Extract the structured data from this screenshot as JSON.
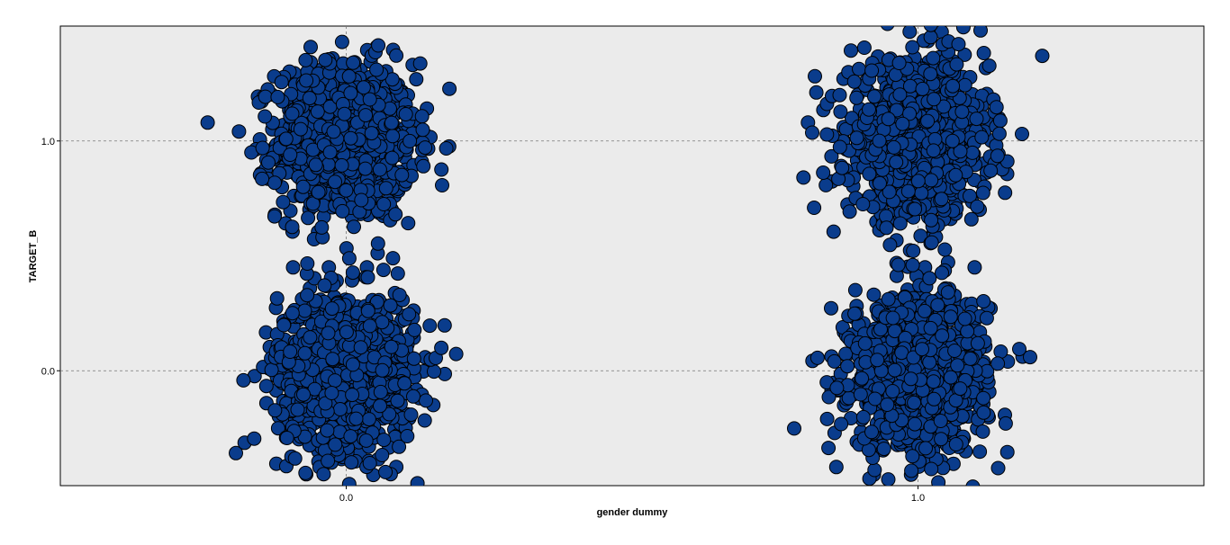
{
  "chart_data": {
    "type": "scatter",
    "xlabel": "gender dummy",
    "ylabel": "TARGET_B",
    "x_ticks": [
      "0.0",
      "1.0"
    ],
    "y_ticks": [
      "0.0",
      "1.0"
    ],
    "xlim": [
      -0.5,
      1.5
    ],
    "ylim": [
      -0.5,
      1.5
    ],
    "grid": true,
    "jitter": true,
    "clusters": [
      {
        "x": 0,
        "y": 1,
        "count": 1100
      },
      {
        "x": 0,
        "y": 0,
        "count": 1100
      },
      {
        "x": 1,
        "y": 1,
        "count": 1100
      },
      {
        "x": 1,
        "y": 0,
        "count": 1100
      }
    ],
    "marker_color": "#0a3c8c",
    "marker_edge": "#000000",
    "plot_background": "#ebebeb"
  }
}
